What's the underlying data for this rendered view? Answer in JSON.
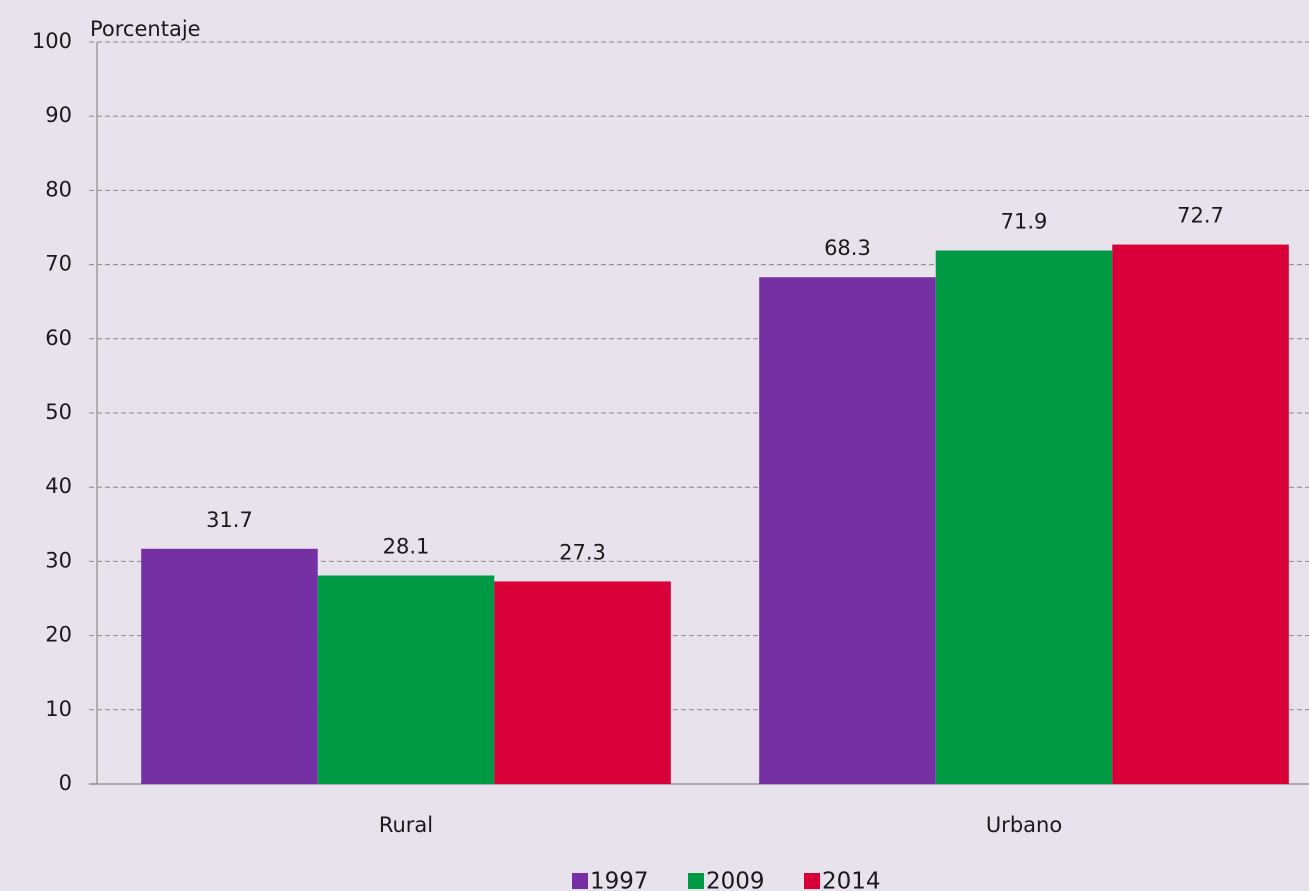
{
  "chart_data": {
    "type": "bar",
    "y_label": "Porcentaje",
    "categories": [
      "Rural",
      "Urbano"
    ],
    "series": [
      {
        "name": "1997",
        "color": "#7530a3",
        "values": [
          31.7,
          68.3
        ]
      },
      {
        "name": "2009",
        "color": "#009a44",
        "values": [
          28.1,
          71.9
        ]
      },
      {
        "name": "2014",
        "color": "#d9003a",
        "values": [
          27.3,
          72.7
        ]
      }
    ],
    "ylim": [
      0,
      100
    ],
    "yticks": [
      0,
      10,
      20,
      30,
      40,
      50,
      60,
      70,
      80,
      90,
      100
    ],
    "grid": true,
    "legend": "bottom"
  }
}
